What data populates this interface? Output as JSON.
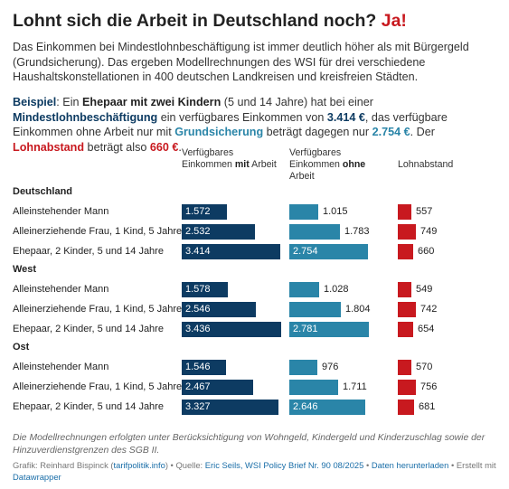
{
  "title_main": "Lohnt sich die Arbeit in Deutschland noch?",
  "title_accent": "Ja!",
  "intro": "Das Einkommen bei Mindestlohnbeschäftigung ist immer deutlich höher als mit Bürgergeld (Grundsicherung). Das ergeben Modellrechnungen des WSI für drei verschiedene Haushaltskonstellationen in 400 deutschen Landkreisen und kreisfreien Städten.",
  "example": {
    "p1": "Beispiel",
    "p2": ": Ein ",
    "p3": "Ehepaar mit zwei Kindern",
    "p4": " (5 und 14 Jahre) hat bei einer ",
    "p5": "Mindestlohnbeschäftigung",
    "p6": " ein verfügbares Einkommen von ",
    "p7": "3.414 €",
    "p8": ", das verfügbare Einkommen ohne Arbeit nur mit ",
    "p9": "Grundsicherung",
    "p10": " beträgt dagegen nur ",
    "p11": "2.754 €",
    "p12": ". Der ",
    "p13": "Lohnabstand",
    "p14": " beträgt also ",
    "p15": "660 €",
    "p16": "."
  },
  "colors": {
    "navy": "#0d3b62",
    "teal": "#2a85a8",
    "red": "#c8191f"
  },
  "chart_data": {
    "type": "bar",
    "columns": [
      {
        "key": "mit_arbeit",
        "h1": "Verfügbares",
        "h2a": "Einkommen ",
        "h2b": "mit",
        "h2c": " Arbeit",
        "h3": ""
      },
      {
        "key": "ohne_arbeit",
        "h1": "Verfügbares",
        "h2a": "Einkommen ",
        "h2b": "ohne",
        "h2c": "",
        "h3": "Arbeit"
      },
      {
        "key": "lohnabstand",
        "h1": "Lohnabstand",
        "h2a": "",
        "h2b": "",
        "h2c": "",
        "h3": ""
      }
    ],
    "groups": [
      {
        "name": "Deutschland",
        "rows": [
          {
            "label": "Alleinstehender Mann",
            "mit": 1572,
            "mit_label": "1.572",
            "ohne": 1015,
            "ohne_label": "1.015",
            "abstand": 557,
            "abstand_label": "557"
          },
          {
            "label": "Alleinerziehende Frau, 1 Kind, 5 Jahre",
            "mit": 2532,
            "mit_label": "2.532",
            "ohne": 1783,
            "ohne_label": "1.783",
            "abstand": 749,
            "abstand_label": "749"
          },
          {
            "label": "Ehepaar, 2 Kinder, 5 und 14 Jahre",
            "mit": 3414,
            "mit_label": "3.414",
            "ohne": 2754,
            "ohne_label": "2.754",
            "abstand": 660,
            "abstand_label": "660"
          }
        ]
      },
      {
        "name": "West",
        "rows": [
          {
            "label": "Alleinstehender Mann",
            "mit": 1578,
            "mit_label": "1.578",
            "ohne": 1028,
            "ohne_label": "1.028",
            "abstand": 549,
            "abstand_label": "549"
          },
          {
            "label": "Alleinerziehende Frau, 1 Kind, 5 Jahre",
            "mit": 2546,
            "mit_label": "2.546",
            "ohne": 1804,
            "ohne_label": "1.804",
            "abstand": 742,
            "abstand_label": "742"
          },
          {
            "label": "Ehepaar, 2 Kinder, 5 und 14 Jahre",
            "mit": 3436,
            "mit_label": "3.436",
            "ohne": 2781,
            "ohne_label": "2.781",
            "abstand": 654,
            "abstand_label": "654"
          }
        ]
      },
      {
        "name": "Ost",
        "rows": [
          {
            "label": "Alleinstehender Mann",
            "mit": 1546,
            "mit_label": "1.546",
            "ohne": 976,
            "ohne_label": "976",
            "abstand": 570,
            "abstand_label": "570"
          },
          {
            "label": "Alleinerziehende Frau, 1 Kind, 5 Jahre",
            "mit": 2467,
            "mit_label": "2.467",
            "ohne": 1711,
            "ohne_label": "1.711",
            "abstand": 756,
            "abstand_label": "756"
          },
          {
            "label": "Ehepaar, 2 Kinder, 5 und 14 Jahre",
            "mit": 3327,
            "mit_label": "3.327",
            "ohne": 2646,
            "ohne_label": "2.646",
            "abstand": 681,
            "abstand_label": "681"
          }
        ]
      }
    ]
  },
  "note": "Die Modellrechnungen erfolgten unter Berücksichtigung von Wohngeld, Kindergeld und Kinderzuschlag sowie der Hinzuverdienstgrenzen des SGB II.",
  "credits": {
    "c1": "Grafik: Reinhard Bispinck (",
    "c2": "tarifpolitik.info",
    "c3": ") • Quelle: ",
    "c4": "Eric Seils, WSI Policy Brief Nr. 90 08/2025",
    "c5": " • ",
    "c6": "Daten herunterladen",
    "c7": " • Erstellt mit ",
    "c8": "Datawrapper"
  }
}
